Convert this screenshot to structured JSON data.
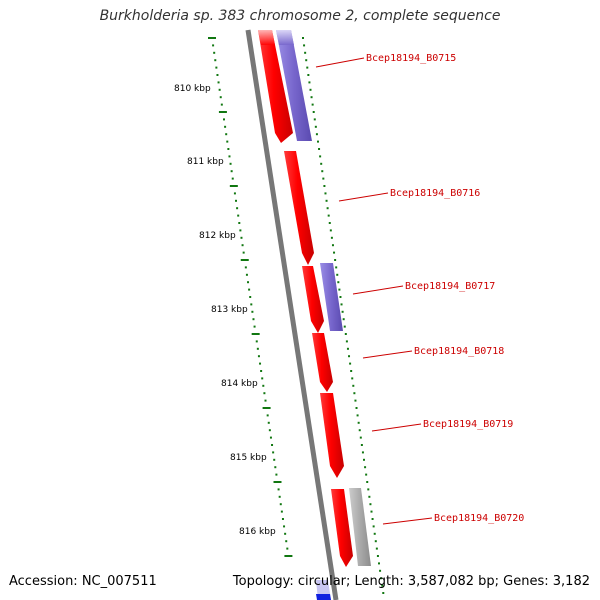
{
  "title": "Burkholderia sp. 383 chromosome 2, complete sequence",
  "footer": {
    "accession": "Accession: NC_007511",
    "summary": "Topology: circular; Length: 3,587,082 bp; Genes: 3,182"
  },
  "scale": {
    "ticks": [
      "810 kbp",
      "811 kbp",
      "812 kbp",
      "813 kbp",
      "814 kbp",
      "815 kbp",
      "816 kbp"
    ]
  },
  "genes": [
    {
      "label": "Bcep18194_B0715"
    },
    {
      "label": "Bcep18194_B0716"
    },
    {
      "label": "Bcep18194_B0717"
    },
    {
      "label": "Bcep18194_B0718"
    },
    {
      "label": "Bcep18194_B0719"
    },
    {
      "label": "Bcep18194_B0720"
    }
  ],
  "colors": {
    "forward_gene": "#ff0000",
    "feature_blue": "#7766cc",
    "feature_gray": "#aaaaaa",
    "backbone": "#777777",
    "tick": "#117711",
    "label": "#cc0000"
  }
}
